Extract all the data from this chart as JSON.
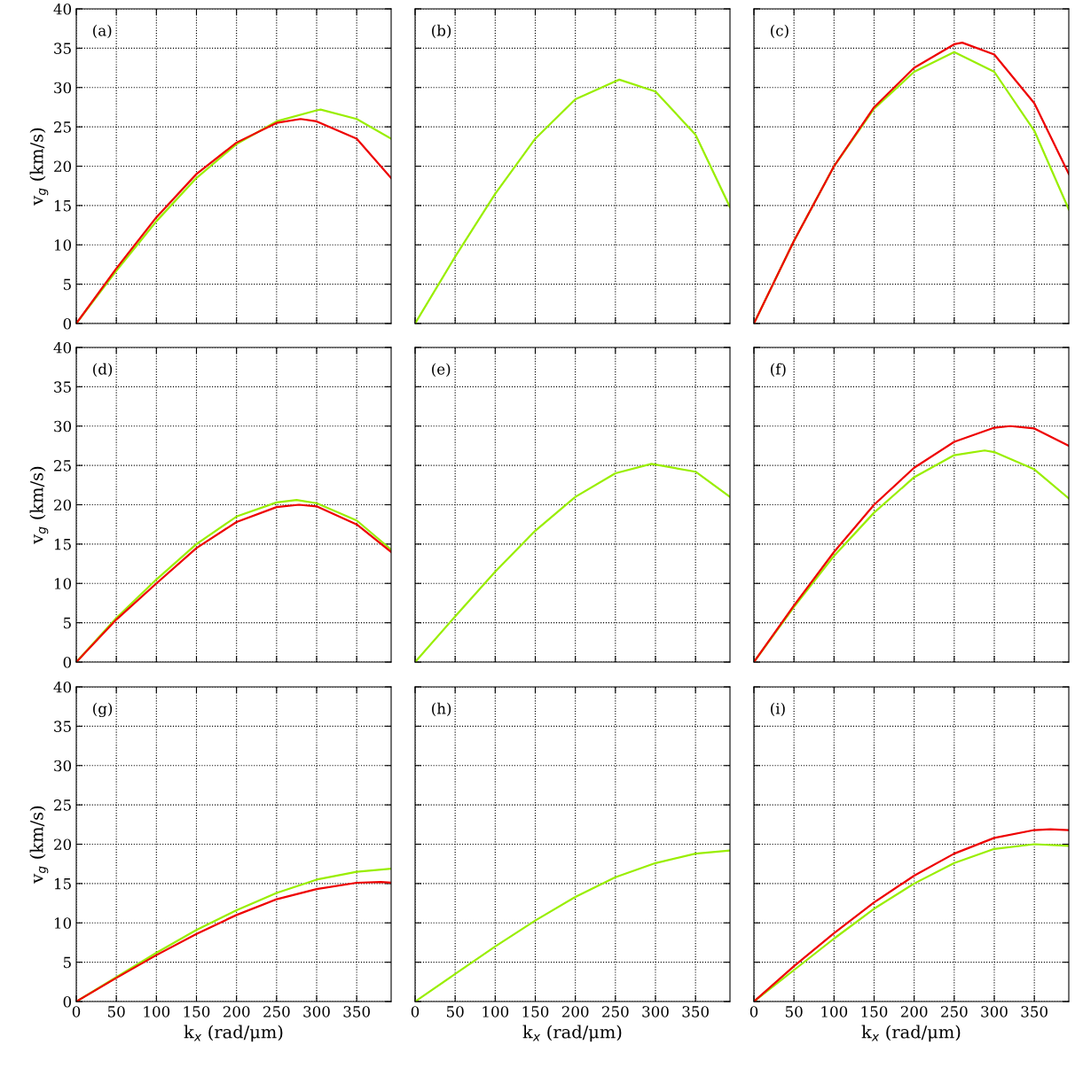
{
  "chart_data": [
    {
      "type": "line",
      "annotations": [
        "(a)"
      ],
      "ylabel": "v$_{g}$ (km/s)",
      "xlim": [
        0,
        393
      ],
      "ylim": [
        0,
        40
      ],
      "xticks": [
        0,
        50,
        100,
        150,
        200,
        250,
        300,
        350
      ],
      "yticks": [
        0,
        5,
        10,
        15,
        20,
        25,
        30,
        35,
        40
      ],
      "grid": true,
      "tick_labels": "y",
      "series": [
        {
          "color": "#99ee00",
          "x": [
            0,
            50,
            100,
            150,
            200,
            250,
            300,
            305,
            350,
            393
          ],
          "values": [
            0,
            6.7,
            13,
            18.5,
            22.8,
            25.7,
            27.1,
            27.2,
            26,
            23.5
          ]
        },
        {
          "color": "#ee0000",
          "x": [
            0,
            50,
            100,
            150,
            200,
            250,
            280,
            300,
            350,
            393
          ],
          "values": [
            0,
            7,
            13.5,
            19,
            23,
            25.5,
            26,
            25.7,
            23.5,
            18.5
          ]
        }
      ]
    },
    {
      "type": "line",
      "annotations": [
        "(b)"
      ],
      "xlim": [
        0,
        393
      ],
      "ylim": [
        0,
        40
      ],
      "xticks": [
        0,
        50,
        100,
        150,
        200,
        250,
        300,
        350
      ],
      "yticks": [
        0,
        5,
        10,
        15,
        20,
        25,
        30,
        35,
        40
      ],
      "grid": true,
      "tick_labels": false,
      "series": [
        {
          "color": "#99ee00",
          "x": [
            0,
            50,
            100,
            150,
            200,
            250,
            255,
            300,
            350,
            393
          ],
          "values": [
            0,
            8.5,
            16.5,
            23.5,
            28.5,
            30.8,
            31,
            29.5,
            24,
            14.8
          ]
        }
      ]
    },
    {
      "type": "line",
      "annotations": [
        "(c)"
      ],
      "xlim": [
        0,
        393
      ],
      "ylim": [
        0,
        40
      ],
      "xticks": [
        0,
        50,
        100,
        150,
        200,
        250,
        300,
        350
      ],
      "yticks": [
        0,
        5,
        10,
        15,
        20,
        25,
        30,
        35,
        40
      ],
      "grid": true,
      "tick_labels": false,
      "series": [
        {
          "color": "#99ee00",
          "x": [
            0,
            50,
            100,
            150,
            200,
            250,
            300,
            350,
            393
          ],
          "values": [
            0,
            10.5,
            20,
            27.3,
            32,
            34.5,
            32,
            24.5,
            14.5
          ]
        },
        {
          "color": "#ee0000",
          "x": [
            0,
            50,
            100,
            150,
            200,
            250,
            260,
            300,
            350,
            393
          ],
          "values": [
            0,
            10.5,
            20,
            27.5,
            32.5,
            35.5,
            35.7,
            34.2,
            28,
            19
          ]
        }
      ]
    },
    {
      "type": "line",
      "annotations": [
        "(d)"
      ],
      "ylabel": "v$_{g}$ (km/s)",
      "xlim": [
        0,
        393
      ],
      "ylim": [
        0,
        40
      ],
      "xticks": [
        0,
        50,
        100,
        150,
        200,
        250,
        300,
        350
      ],
      "yticks": [
        0,
        5,
        10,
        15,
        20,
        25,
        30,
        35,
        40
      ],
      "grid": true,
      "tick_labels": "y",
      "series": [
        {
          "color": "#99ee00",
          "x": [
            0,
            50,
            100,
            150,
            200,
            250,
            275,
            300,
            350,
            393
          ],
          "values": [
            0,
            5.6,
            10.5,
            15,
            18.5,
            20.3,
            20.6,
            20.2,
            18,
            14.3
          ]
        },
        {
          "color": "#ee0000",
          "x": [
            0,
            50,
            100,
            150,
            200,
            250,
            278,
            300,
            350,
            393
          ],
          "values": [
            0,
            5.4,
            10,
            14.5,
            17.8,
            19.7,
            20,
            19.8,
            17.5,
            14
          ]
        }
      ]
    },
    {
      "type": "line",
      "annotations": [
        "(e)"
      ],
      "xlim": [
        0,
        393
      ],
      "ylim": [
        0,
        40
      ],
      "xticks": [
        0,
        50,
        100,
        150,
        200,
        250,
        300,
        350
      ],
      "yticks": [
        0,
        5,
        10,
        15,
        20,
        25,
        30,
        35,
        40
      ],
      "grid": true,
      "tick_labels": false,
      "series": [
        {
          "color": "#99ee00",
          "x": [
            0,
            50,
            100,
            150,
            200,
            250,
            295,
            350,
            393
          ],
          "values": [
            0,
            5.8,
            11.5,
            16.7,
            21,
            24,
            25.2,
            24.2,
            21
          ]
        }
      ]
    },
    {
      "type": "line",
      "annotations": [
        "(f)"
      ],
      "xlim": [
        0,
        393
      ],
      "ylim": [
        0,
        40
      ],
      "xticks": [
        0,
        50,
        100,
        150,
        200,
        250,
        300,
        350
      ],
      "yticks": [
        0,
        5,
        10,
        15,
        20,
        25,
        30,
        35,
        40
      ],
      "grid": true,
      "tick_labels": false,
      "series": [
        {
          "color": "#99ee00",
          "x": [
            0,
            50,
            100,
            150,
            200,
            250,
            288,
            300,
            350,
            393
          ],
          "values": [
            0,
            7,
            13.5,
            19,
            23.5,
            26.3,
            26.9,
            26.7,
            24.5,
            20.8
          ]
        },
        {
          "color": "#ee0000",
          "x": [
            0,
            50,
            100,
            150,
            200,
            250,
            300,
            320,
            350,
            393
          ],
          "values": [
            0,
            7.2,
            14,
            20,
            24.7,
            28,
            29.8,
            30,
            29.7,
            27.5
          ]
        }
      ]
    },
    {
      "type": "line",
      "annotations": [
        "(g)"
      ],
      "xlabel": "k$_{x}$ (rad/μm)",
      "ylabel": "v$_{g}$ (km/s)",
      "xlim": [
        0,
        393
      ],
      "ylim": [
        0,
        40
      ],
      "xticks": [
        0,
        50,
        100,
        150,
        200,
        250,
        300,
        350
      ],
      "yticks": [
        0,
        5,
        10,
        15,
        20,
        25,
        30,
        35,
        40
      ],
      "grid": true,
      "series": [
        {
          "color": "#99ee00",
          "x": [
            0,
            50,
            100,
            150,
            200,
            250,
            300,
            350,
            393
          ],
          "values": [
            0,
            3.1,
            6.2,
            9.1,
            11.6,
            13.8,
            15.5,
            16.5,
            16.9
          ]
        },
        {
          "color": "#ee0000",
          "x": [
            0,
            50,
            100,
            150,
            200,
            250,
            300,
            350,
            380,
            393
          ],
          "values": [
            0,
            3,
            5.9,
            8.6,
            11,
            13,
            14.3,
            15.1,
            15.2,
            15.1
          ]
        }
      ]
    },
    {
      "type": "line",
      "annotations": [
        "(h)"
      ],
      "xlabel": "k$_{x}$ (rad/μm)",
      "xlim": [
        0,
        393
      ],
      "ylim": [
        0,
        40
      ],
      "xticks": [
        0,
        50,
        100,
        150,
        200,
        250,
        300,
        350
      ],
      "yticks": [
        0,
        5,
        10,
        15,
        20,
        25,
        30,
        35,
        40
      ],
      "grid": true,
      "tick_labels": "x",
      "series": [
        {
          "color": "#99ee00",
          "x": [
            0,
            50,
            100,
            150,
            200,
            250,
            300,
            350,
            393
          ],
          "values": [
            0,
            3.5,
            7,
            10.3,
            13.3,
            15.8,
            17.6,
            18.8,
            19.2
          ]
        }
      ]
    },
    {
      "type": "line",
      "annotations": [
        "(i)"
      ],
      "xlabel": "k$_{x}$ (rad/μm)",
      "xlim": [
        0,
        393
      ],
      "ylim": [
        0,
        40
      ],
      "xticks": [
        0,
        50,
        100,
        150,
        200,
        250,
        300,
        350
      ],
      "yticks": [
        0,
        5,
        10,
        15,
        20,
        25,
        30,
        35,
        40
      ],
      "grid": true,
      "tick_labels": "x",
      "series": [
        {
          "color": "#99ee00",
          "x": [
            0,
            50,
            100,
            150,
            200,
            250,
            300,
            350,
            393
          ],
          "values": [
            0,
            4,
            8,
            11.8,
            15,
            17.6,
            19.4,
            20,
            19.8
          ]
        },
        {
          "color": "#ee0000",
          "x": [
            0,
            50,
            100,
            150,
            200,
            250,
            300,
            350,
            370,
            393
          ],
          "values": [
            0,
            4.5,
            8.7,
            12.6,
            16,
            18.8,
            20.8,
            21.8,
            21.9,
            21.8
          ]
        }
      ]
    }
  ]
}
